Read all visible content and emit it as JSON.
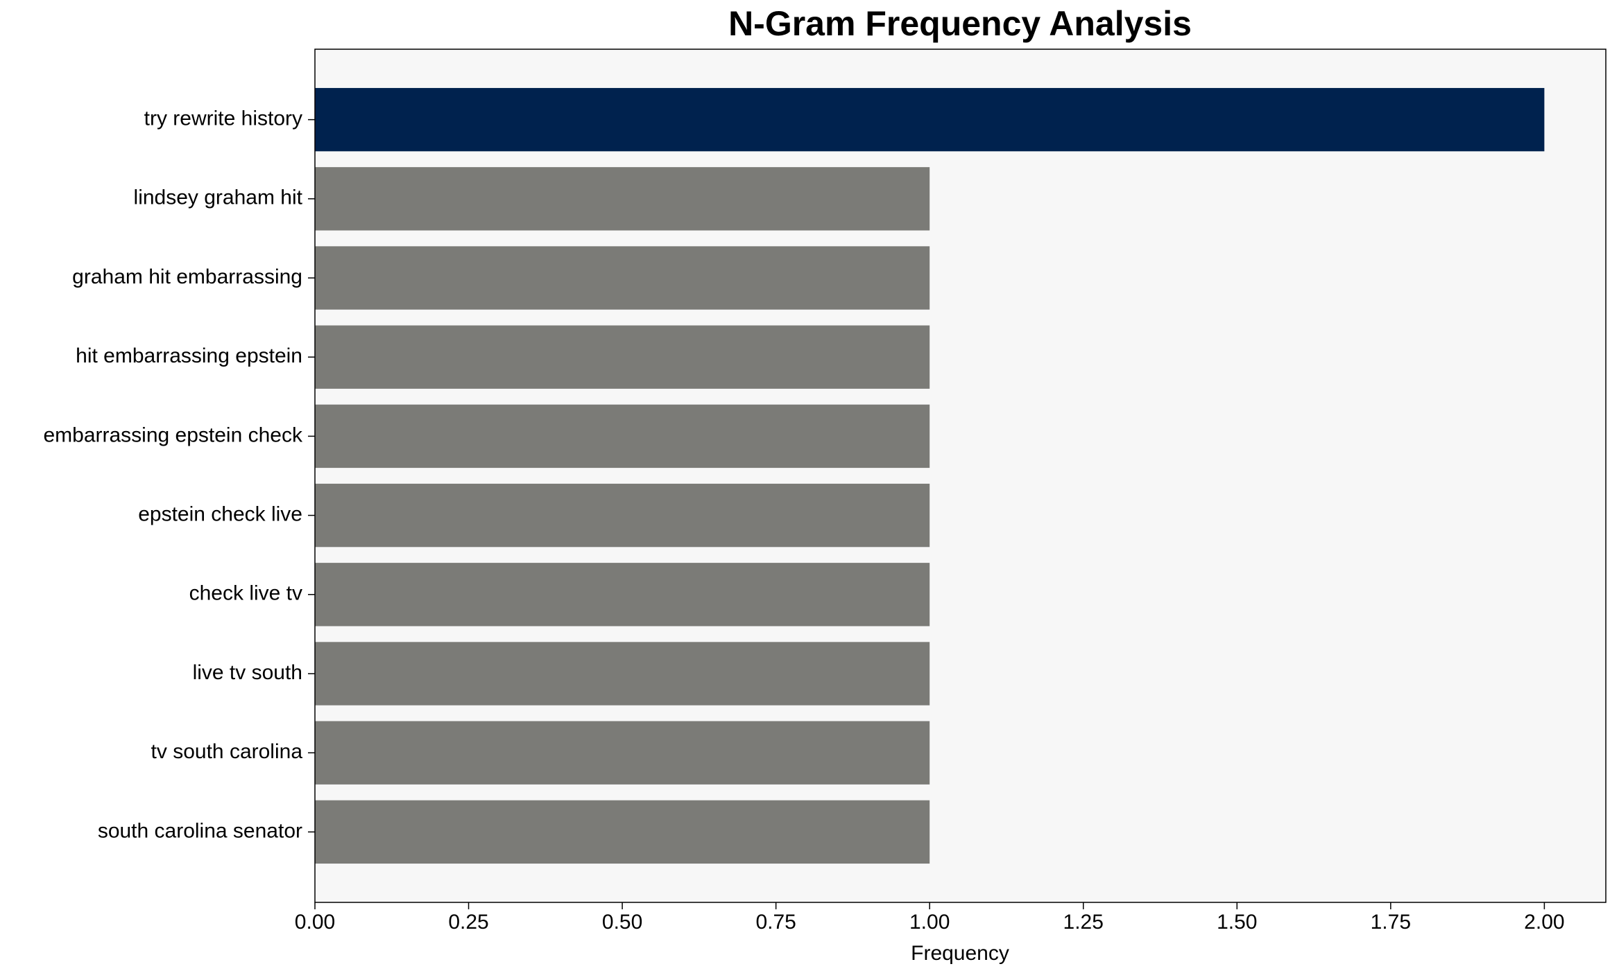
{
  "chart_data": {
    "type": "barh",
    "title": "N-Gram Frequency Analysis",
    "xlabel": "Frequency",
    "categories": [
      "try rewrite history",
      "lindsey graham hit",
      "graham hit embarrassing",
      "hit embarrassing epstein",
      "embarrassing epstein check",
      "epstein check live",
      "check live tv",
      "live tv south",
      "tv south carolina",
      "south carolina senator"
    ],
    "values": [
      2,
      1,
      1,
      1,
      1,
      1,
      1,
      1,
      1,
      1
    ],
    "colors": [
      "#00224e",
      "#7b7b77",
      "#7b7b77",
      "#7b7b77",
      "#7b7b77",
      "#7b7b77",
      "#7b7b77",
      "#7b7b77",
      "#7b7b77",
      "#7b7b77"
    ],
    "xlim": [
      0,
      2.1
    ],
    "xticks": [
      {
        "value": 0,
        "label": "0.00"
      },
      {
        "value": 0.25,
        "label": "0.25"
      },
      {
        "value": 0.5,
        "label": "0.50"
      },
      {
        "value": 0.75,
        "label": "0.75"
      },
      {
        "value": 1,
        "label": "1.00"
      },
      {
        "value": 1.25,
        "label": "1.25"
      },
      {
        "value": 1.5,
        "label": "1.50"
      },
      {
        "value": 1.75,
        "label": "1.75"
      },
      {
        "value": 2,
        "label": "2.00"
      }
    ],
    "background": "#f7f7f7"
  }
}
